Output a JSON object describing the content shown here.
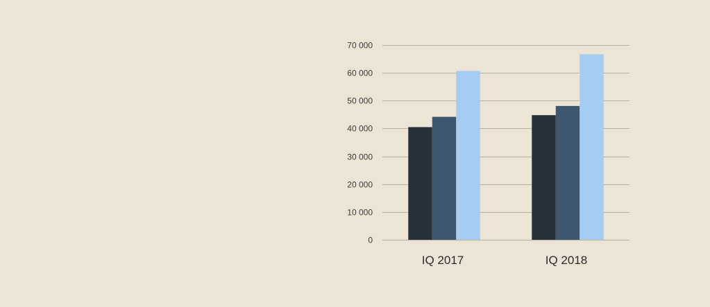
{
  "chart_data": {
    "type": "bar",
    "categories": [
      "IQ 2017",
      "IQ 2018"
    ],
    "series": [
      {
        "values": [
          40500,
          44800
        ],
        "color": "#27313c"
      },
      {
        "values": [
          44200,
          48100
        ],
        "color": "#3e566e"
      },
      {
        "values": [
          60700,
          66700
        ],
        "color": "#a5cdf2"
      }
    ],
    "yticks": [
      0,
      10000,
      20000,
      30000,
      40000,
      50000,
      60000,
      70000
    ],
    "ytick_labels": [
      "0",
      "10 000",
      "20 000",
      "30 000",
      "40 000",
      "50 000",
      "60 000",
      "70 000"
    ],
    "ylim": [
      0,
      70000
    ],
    "grid": true,
    "legend": "none",
    "title": "",
    "xlabel": "",
    "ylabel": ""
  },
  "colors": {
    "background": "#ece5d6",
    "gridline": "#b3b09d"
  }
}
